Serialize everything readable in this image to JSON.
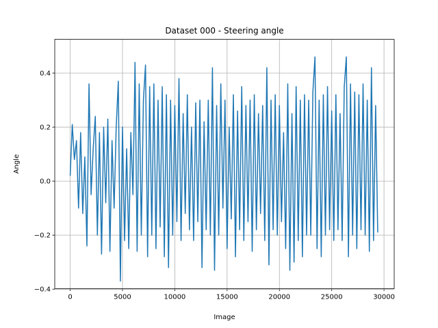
{
  "chart_data": {
    "type": "line",
    "title": "Dataset 000 - Steering angle",
    "xlabel": "Image",
    "ylabel": "Angle",
    "color": "#1f77b4",
    "grid": true,
    "xlim": [
      -1475,
      30975
    ],
    "ylim": [
      -0.398,
      0.525
    ],
    "xticks": [
      0,
      5000,
      10000,
      15000,
      20000,
      25000,
      30000
    ],
    "yticks": [
      {
        "value": -0.4,
        "label": "−0.4"
      },
      {
        "value": -0.2,
        "label": "−0.2"
      },
      {
        "value": 0,
        "label": "0.0"
      },
      0.2,
      0.4
    ],
    "x": [
      0,
      200,
      400,
      600,
      800,
      1000,
      1200,
      1400,
      1600,
      1800,
      2000,
      2200,
      2400,
      2600,
      2800,
      3000,
      3200,
      3400,
      3600,
      3800,
      4000,
      4200,
      4400,
      4600,
      4800,
      5000,
      5200,
      5400,
      5600,
      5800,
      6000,
      6200,
      6400,
      6600,
      6800,
      7000,
      7200,
      7400,
      7600,
      7800,
      8000,
      8200,
      8400,
      8600,
      8800,
      9000,
      9200,
      9400,
      9600,
      9800,
      10000,
      10200,
      10400,
      10600,
      10800,
      11000,
      11200,
      11400,
      11600,
      11800,
      12000,
      12200,
      12400,
      12600,
      12800,
      13000,
      13200,
      13400,
      13600,
      13800,
      14000,
      14200,
      14400,
      14600,
      14800,
      15000,
      15200,
      15400,
      15600,
      15800,
      16000,
      16200,
      16400,
      16600,
      16800,
      17000,
      17200,
      17400,
      17600,
      17800,
      18000,
      18200,
      18400,
      18600,
      18800,
      19000,
      19200,
      19400,
      19600,
      19800,
      20000,
      20200,
      20400,
      20600,
      20800,
      21000,
      21200,
      21400,
      21600,
      21800,
      22000,
      22200,
      22400,
      22600,
      22800,
      23000,
      23200,
      23400,
      23600,
      23800,
      24000,
      24200,
      24400,
      24600,
      24800,
      25000,
      25200,
      25400,
      25600,
      25800,
      26000,
      26200,
      26400,
      26600,
      26800,
      27000,
      27200,
      27400,
      27600,
      27800,
      28000,
      28200,
      28400,
      28600,
      28800,
      29000,
      29200,
      29400
    ],
    "values": [
      0.02,
      0.21,
      0.08,
      0.15,
      -0.1,
      0.18,
      -0.12,
      0.09,
      -0.24,
      0.36,
      -0.05,
      0.12,
      0.24,
      -0.2,
      0.18,
      -0.27,
      0.2,
      -0.08,
      0.23,
      -0.26,
      0.15,
      -0.1,
      0.2,
      0.37,
      -0.37,
      0.2,
      -0.22,
      0.12,
      -0.25,
      0.18,
      -0.05,
      0.44,
      -0.26,
      0.36,
      -0.2,
      0.3,
      0.43,
      -0.28,
      0.35,
      -0.2,
      0.36,
      -0.25,
      0.3,
      -0.17,
      0.35,
      -0.28,
      0.32,
      -0.32,
      0.3,
      -0.2,
      0.28,
      -0.15,
      0.38,
      -0.22,
      0.25,
      -0.12,
      0.32,
      -0.18,
      0.2,
      -0.22,
      0.29,
      -0.15,
      0.3,
      -0.32,
      0.22,
      -0.18,
      0.3,
      -0.2,
      0.42,
      -0.33,
      0.28,
      -0.2,
      0.36,
      -0.1,
      0.3,
      -0.25,
      0.2,
      -0.14,
      0.32,
      -0.28,
      0.26,
      -0.18,
      0.35,
      -0.22,
      0.28,
      -0.15,
      0.3,
      -0.26,
      0.32,
      -0.18,
      0.25,
      -0.12,
      0.28,
      -0.22,
      0.42,
      -0.31,
      0.3,
      -0.18,
      0.32,
      -0.2,
      0.28,
      -0.15,
      0.18,
      -0.25,
      0.36,
      -0.33,
      0.25,
      -0.3,
      0.35,
      -0.22,
      0.3,
      -0.28,
      0.32,
      -0.2,
      0.3,
      -0.2,
      0.33,
      0.46,
      -0.25,
      0.3,
      -0.28,
      0.32,
      -0.2,
      0.35,
      -0.18,
      0.26,
      -0.22,
      0.32,
      -0.18,
      0.25,
      -0.22,
      0.35,
      0.46,
      -0.28,
      0.36,
      -0.2,
      0.33,
      -0.25,
      0.32,
      -0.18,
      0.36,
      -0.2,
      0.3,
      -0.26,
      0.42,
      -0.22,
      0.28,
      -0.19
    ]
  }
}
